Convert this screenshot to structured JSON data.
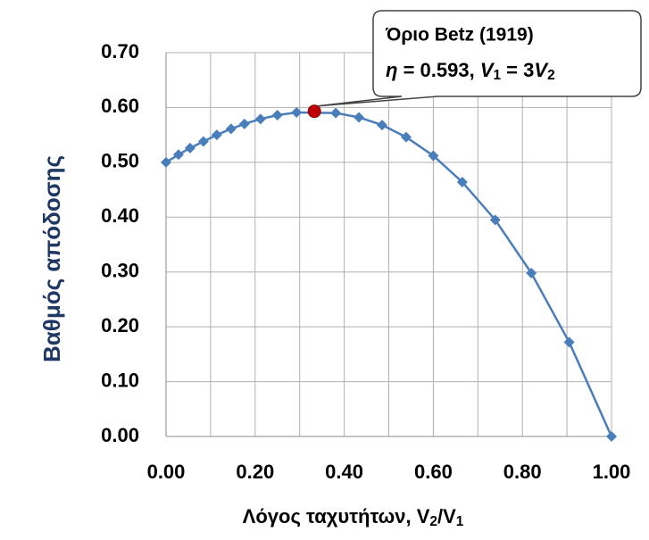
{
  "chart_data": {
    "type": "line",
    "x": [
      0,
      0.028,
      0.054,
      0.084,
      0.114,
      0.146,
      0.176,
      0.212,
      0.25,
      0.293,
      0.381,
      0.433,
      0.485,
      0.539,
      0.6,
      0.665,
      0.739,
      0.82,
      0.905,
      1
    ],
    "series": [
      {
        "color": "#4a7ebb",
        "values": [
          0.5,
          0.514,
          0.526,
          0.538,
          0.55,
          0.561,
          0.57,
          0.579,
          0.586,
          0.591,
          0.59,
          0.582,
          0.568,
          0.546,
          0.512,
          0.464,
          0.395,
          0.298,
          0.172,
          0
        ]
      }
    ],
    "xlim": [
      0,
      1
    ],
    "ylim": [
      0,
      0.7
    ],
    "xticks": [
      {
        "value": 0,
        "label": "0.00"
      },
      {
        "value": 0.2,
        "label": "0.20"
      },
      {
        "value": 0.4,
        "label": "0.40"
      },
      {
        "value": 0.6,
        "label": "0.60"
      },
      {
        "value": 0.8,
        "label": "0.80"
      },
      {
        "value": 1,
        "label": "1.00"
      }
    ],
    "xminorticks": [
      0.1,
      0.3,
      0.5,
      0.7,
      0.9
    ],
    "yticks": [
      {
        "value": 0,
        "label": "0.00"
      },
      {
        "value": 0.1,
        "label": "0.10"
      },
      {
        "value": 0.2,
        "label": "0.20"
      },
      {
        "value": 0.3,
        "label": "0.30"
      },
      {
        "value": 0.4,
        "label": "0.40"
      },
      {
        "value": 0.5,
        "label": "0.50"
      },
      {
        "value": 0.6,
        "label": "0.60"
      },
      {
        "value": 0.7,
        "label": "0.70"
      }
    ],
    "grid": true,
    "ylabel": "Βαθμός απόδοσης",
    "xlabel": [
      {
        "text": "Λόγος ταχυτήτων, V"
      },
      {
        "text": "2",
        "sub": true
      },
      {
        "text": "/V"
      },
      {
        "text": "1",
        "sub": true
      }
    ],
    "annotation": {
      "x": 0.333,
      "y": 0.593,
      "color": "#c00000",
      "title": "Όριο Betz (1919)",
      "line2": [
        {
          "text": "η",
          "italic": true
        },
        {
          "text": " = 0.593, "
        },
        {
          "text": "V",
          "italic": true
        },
        {
          "text": "1",
          "sub": true
        },
        {
          "text": " = 3"
        },
        {
          "text": "V",
          "italic": true
        },
        {
          "text": "2",
          "sub": true
        }
      ]
    }
  }
}
